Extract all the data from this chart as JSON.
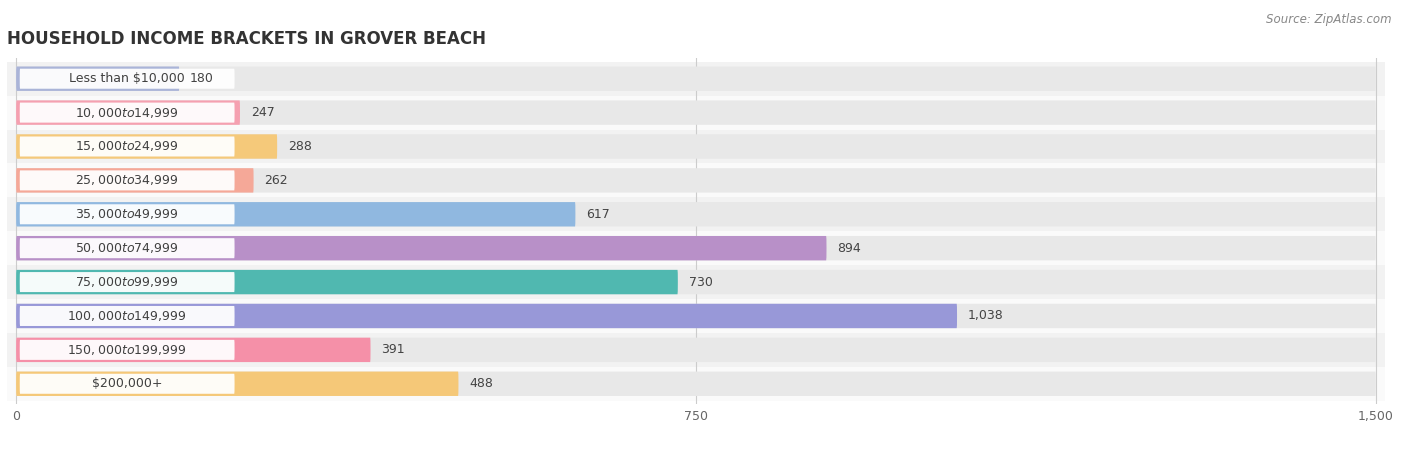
{
  "title": "HOUSEHOLD INCOME BRACKETS IN GROVER BEACH",
  "source": "Source: ZipAtlas.com",
  "categories": [
    "Less than $10,000",
    "$10,000 to $14,999",
    "$15,000 to $24,999",
    "$25,000 to $34,999",
    "$35,000 to $49,999",
    "$50,000 to $74,999",
    "$75,000 to $99,999",
    "$100,000 to $149,999",
    "$150,000 to $199,999",
    "$200,000+"
  ],
  "values": [
    180,
    247,
    288,
    262,
    617,
    894,
    730,
    1038,
    391,
    488
  ],
  "bar_colors": [
    "#aab4d8",
    "#f5a0b0",
    "#f5c97a",
    "#f5a898",
    "#90b8e0",
    "#b890c8",
    "#50b8b0",
    "#9898d8",
    "#f590a8",
    "#f5c878"
  ],
  "background_color": "#ffffff",
  "row_bg_even": "#f2f2f2",
  "row_bg_odd": "#fafafa",
  "bar_track_color": "#e8e8e8",
  "xlim": [
    0,
    1500
  ],
  "xticks": [
    0,
    750,
    1500
  ],
  "title_fontsize": 12,
  "label_fontsize": 9,
  "value_fontsize": 9,
  "source_fontsize": 8.5
}
